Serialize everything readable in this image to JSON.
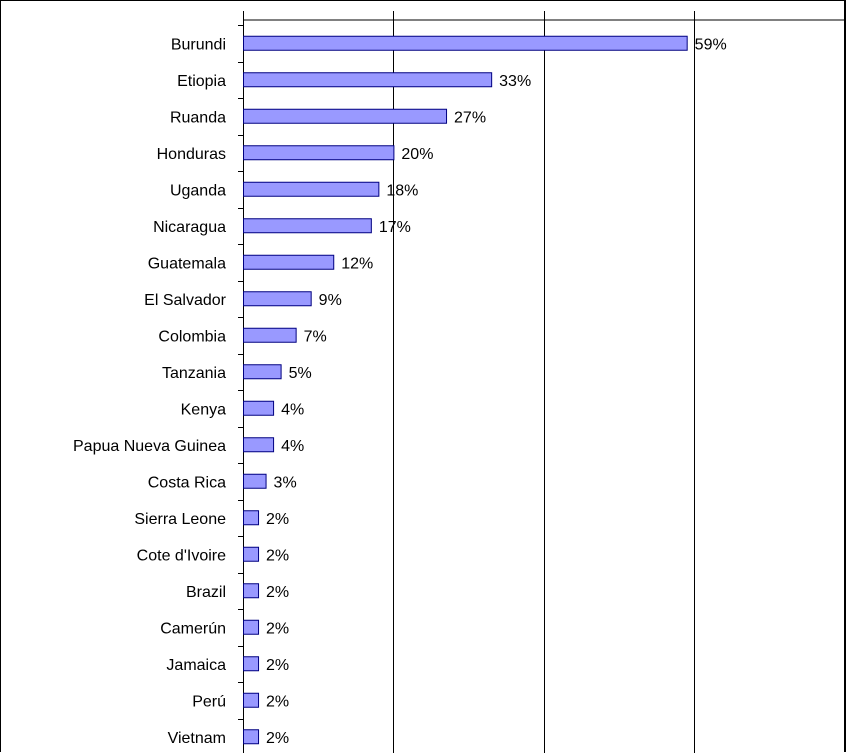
{
  "chart_data": {
    "type": "bar",
    "orientation": "horizontal",
    "categories": [
      "Burundi",
      "Etiopia",
      "Ruanda",
      "Honduras",
      "Uganda",
      "Nicaragua",
      "Guatemala",
      "El Salvador",
      "Colombia",
      "Tanzania",
      "Kenya",
      "Papua Nueva Guinea",
      "Costa Rica",
      "Sierra Leone",
      "Cote d'Ivoire",
      "Brazil",
      "Camerún",
      "Jamaica",
      "Perú",
      "Vietnam"
    ],
    "values": [
      59,
      33,
      27,
      20,
      18,
      17,
      12,
      9,
      7,
      5,
      4,
      4,
      3,
      2,
      2,
      2,
      2,
      2,
      2,
      2
    ],
    "value_labels": [
      "59%",
      "33%",
      "27%",
      "20%",
      "18%",
      "17%",
      "12%",
      "9%",
      "7%",
      "5%",
      "4%",
      "4%",
      "3%",
      "2%",
      "2%",
      "2%",
      "2%",
      "2%",
      "2%",
      "2%"
    ],
    "xlim": [
      0,
      80
    ],
    "grid": true,
    "bar_color": "#9999ff",
    "bar_edge_color": "#000080",
    "title": "",
    "xlabel": "",
    "ylabel": ""
  }
}
